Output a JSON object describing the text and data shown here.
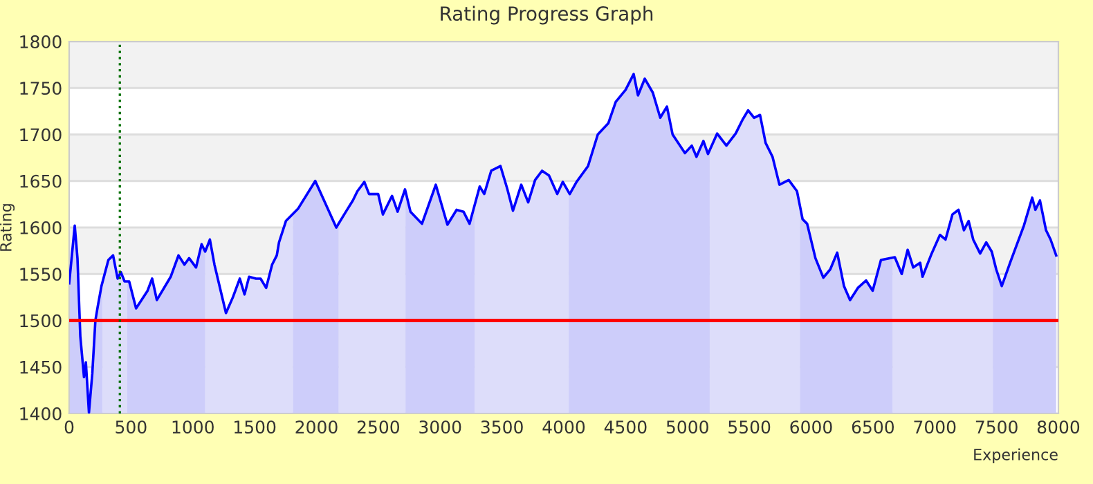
{
  "chart_data": {
    "type": "area",
    "title": "Rating Progress Graph",
    "xlabel": "Experience",
    "ylabel": "Rating",
    "xlim": [
      0,
      8000
    ],
    "ylim": [
      1400,
      1800
    ],
    "xticks": [
      0,
      500,
      1000,
      1500,
      2000,
      2500,
      3000,
      3500,
      4000,
      4500,
      5000,
      5500,
      6000,
      6500,
      7000,
      7500,
      8000
    ],
    "yticks": [
      1400,
      1450,
      1500,
      1550,
      1600,
      1650,
      1700,
      1750,
      1800
    ],
    "grid": "y",
    "legend": false,
    "series": [
      {
        "color": "#0000ff",
        "x": [
          0,
          45,
          67,
          90,
          120,
          135,
          160,
          187,
          212,
          231,
          261,
          317,
          355,
          392,
          418,
          448,
          485,
          541,
          634,
          671,
          709,
          821,
          884,
          932,
          970,
          1026,
          1071,
          1100,
          1138,
          1175,
          1268,
          1324,
          1380,
          1418,
          1455,
          1511,
          1548,
          1593,
          1641,
          1679,
          1697,
          1753,
          1850,
          1990,
          2160,
          2238,
          2294,
          2331,
          2387,
          2425,
          2499,
          2537,
          2611,
          2656,
          2716,
          2760,
          2853,
          2965,
          3059,
          3133,
          3189,
          3238,
          3320,
          3357,
          3413,
          3488,
          3544,
          3589,
          3656,
          3712,
          3768,
          3824,
          3880,
          3947,
          3992,
          4048,
          4103,
          4196,
          4275,
          4360,
          4420,
          4500,
          4565,
          4600,
          4655,
          4720,
          4780,
          4834,
          4880,
          4930,
          4980,
          5035,
          5073,
          5129,
          5166,
          5240,
          5315,
          5390,
          5446,
          5491,
          5539,
          5587,
          5632,
          5688,
          5744,
          5819,
          5886,
          5931,
          5968,
          6035,
          6099,
          6155,
          6211,
          6266,
          6315,
          6378,
          6445,
          6498,
          6565,
          6677,
          6733,
          6781,
          6826,
          6882,
          6901,
          6975,
          7042,
          7087,
          7143,
          7192,
          7236,
          7274,
          7311,
          7367,
          7416,
          7461,
          7497,
          7542,
          7609,
          7665,
          7721,
          7788,
          7814,
          7851,
          7900,
          7937,
          7982
        ],
        "values": [
          1540,
          1602,
          1567,
          1483,
          1439,
          1455,
          1401,
          1443,
          1500,
          1515,
          1537,
          1565,
          1570,
          1545,
          1552,
          1542,
          1542,
          1513,
          1532,
          1545,
          1522,
          1547,
          1570,
          1560,
          1567,
          1557,
          1582,
          1574,
          1587,
          1560,
          1508,
          1525,
          1545,
          1528,
          1547,
          1545,
          1545,
          1535,
          1560,
          1570,
          1584,
          1607,
          1620,
          1650,
          1600,
          1617,
          1629,
          1639,
          1649,
          1636,
          1636,
          1614,
          1634,
          1617,
          1641,
          1617,
          1604,
          1646,
          1603,
          1619,
          1617,
          1604,
          1644,
          1636,
          1661,
          1666,
          1641,
          1618,
          1646,
          1627,
          1651,
          1661,
          1656,
          1636,
          1649,
          1636,
          1649,
          1666,
          1700,
          1712,
          1735,
          1748,
          1765,
          1742,
          1760,
          1745,
          1718,
          1730,
          1700,
          1690,
          1680,
          1688,
          1676,
          1693,
          1679,
          1701,
          1688,
          1701,
          1716,
          1726,
          1718,
          1721,
          1691,
          1676,
          1646,
          1651,
          1639,
          1609,
          1604,
          1567,
          1546,
          1555,
          1573,
          1537,
          1522,
          1535,
          1543,
          1532,
          1565,
          1568,
          1550,
          1576,
          1557,
          1562,
          1547,
          1572,
          1592,
          1587,
          1614,
          1619,
          1597,
          1607,
          1587,
          1572,
          1584,
          1574,
          1555,
          1537,
          1562,
          1582,
          1602,
          1632,
          1619,
          1629,
          1597,
          1587,
          1570
        ]
      }
    ],
    "ref_lines": [
      {
        "axis": "y",
        "value": 1500,
        "color": "#ff0000",
        "line_style": "solid"
      },
      {
        "axis": "x",
        "value": 410,
        "color": "#007000",
        "line_style": "dotted"
      }
    ],
    "bands": [
      {
        "axis": "y",
        "from": 1450,
        "to": 1500,
        "color": "#f2f2f2"
      },
      {
        "axis": "y",
        "from": 1550,
        "to": 1600,
        "color": "#f2f2f2"
      },
      {
        "axis": "y",
        "from": 1650,
        "to": 1700,
        "color": "#f2f2f2"
      },
      {
        "axis": "y",
        "from": 1750,
        "to": 1800,
        "color": "#f2f2f2"
      },
      {
        "axis": "x",
        "from": 0,
        "to": 270,
        "color": "#cfcffa"
      },
      {
        "axis": "x",
        "from": 270,
        "to": 470,
        "color": "#e8e8fb"
      },
      {
        "axis": "x",
        "from": 470,
        "to": 1100,
        "color": "#cfcffa"
      },
      {
        "axis": "x",
        "from": 1100,
        "to": 1810,
        "color": "#e8e8fb"
      },
      {
        "axis": "x",
        "from": 1810,
        "to": 2180,
        "color": "#cfcffa"
      },
      {
        "axis": "x",
        "from": 2180,
        "to": 2720,
        "color": "#e8e8fb"
      },
      {
        "axis": "x",
        "from": 2720,
        "to": 3280,
        "color": "#cfcffa"
      },
      {
        "axis": "x",
        "from": 3280,
        "to": 4040,
        "color": "#e8e8fb"
      },
      {
        "axis": "x",
        "from": 4040,
        "to": 5180,
        "color": "#cfcffa"
      },
      {
        "axis": "x",
        "from": 5180,
        "to": 5910,
        "color": "#e8e8fb"
      },
      {
        "axis": "x",
        "from": 5910,
        "to": 6660,
        "color": "#cfcffa"
      },
      {
        "axis": "x",
        "from": 6660,
        "to": 7470,
        "color": "#e8e8fb"
      },
      {
        "axis": "x",
        "from": 7470,
        "to": 7982,
        "color": "#cfcffa"
      }
    ]
  }
}
